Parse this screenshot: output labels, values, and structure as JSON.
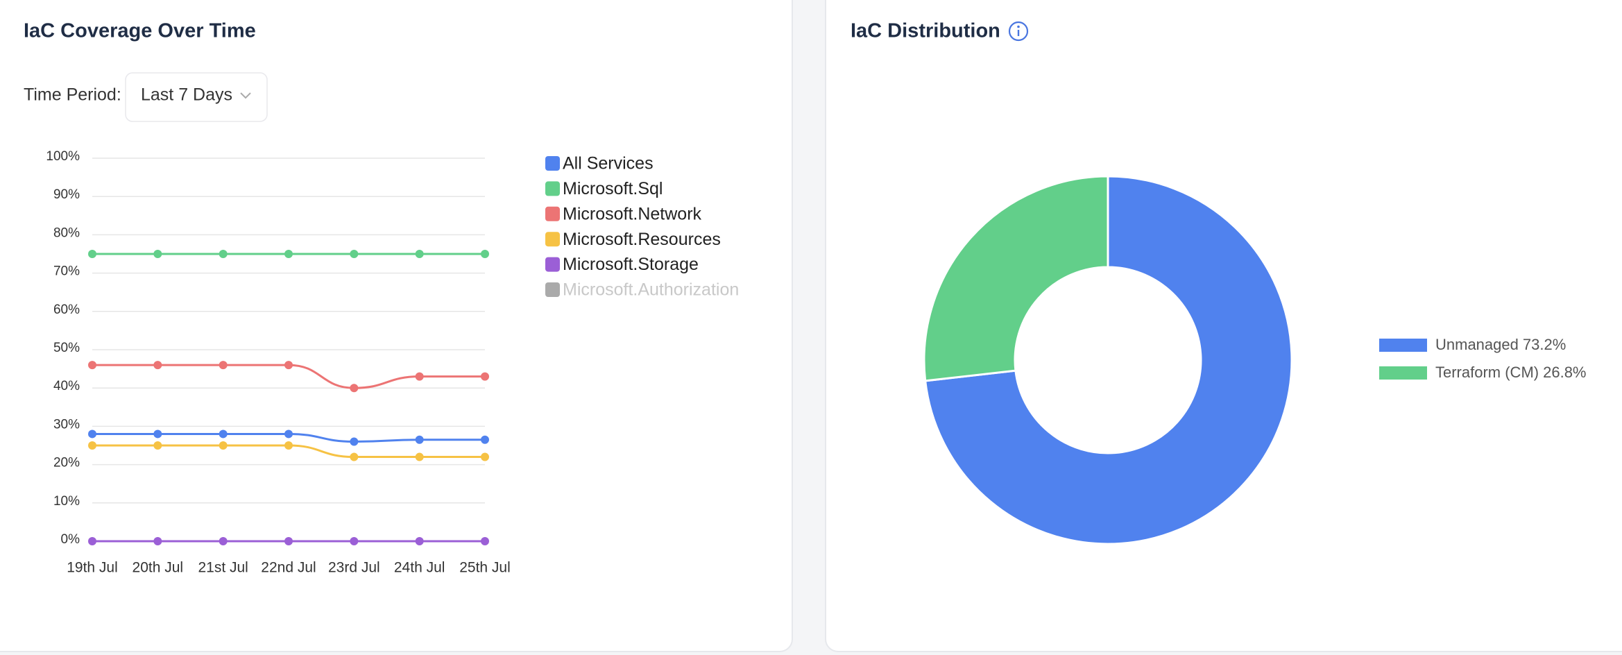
{
  "left_card": {
    "title": "IaC Coverage Over Time",
    "filter_label": "Time Period:",
    "filter_value": "Last 7 Days"
  },
  "right_card": {
    "title": "IaC Distribution"
  },
  "chart_data": [
    {
      "type": "line",
      "categories": [
        "19th Jul",
        "20th Jul",
        "21st Jul",
        "22nd Jul",
        "23rd Jul",
        "24th Jul",
        "25th Jul"
      ],
      "ylim": [
        0,
        100
      ],
      "yticks": [
        {
          "value": 0,
          "label": "0%"
        },
        {
          "value": 10,
          "label": "10%"
        },
        {
          "value": 20,
          "label": "20%"
        },
        {
          "value": 30,
          "label": "30%"
        },
        {
          "value": 40,
          "label": "40%"
        },
        {
          "value": 50,
          "label": "50%"
        },
        {
          "value": 60,
          "label": "60%"
        },
        {
          "value": 70,
          "label": "70%"
        },
        {
          "value": 80,
          "label": "80%"
        },
        {
          "value": 90,
          "label": "90%"
        },
        {
          "value": 100,
          "label": "100%"
        }
      ],
      "grid": true,
      "legend": "right",
      "series": [
        {
          "name": "All Services",
          "color": "#5082ee",
          "values": [
            28,
            28,
            28,
            28,
            26,
            26.5,
            26.5
          ]
        },
        {
          "name": "Microsoft.Sql",
          "color": "#62cf8a",
          "values": [
            75,
            75,
            75,
            75,
            75,
            75,
            75
          ]
        },
        {
          "name": "Microsoft.Network",
          "color": "#ec7474",
          "values": [
            46,
            46,
            46,
            46,
            40,
            43,
            43
          ]
        },
        {
          "name": "Microsoft.Resources",
          "color": "#f6c244",
          "values": [
            25,
            25,
            25,
            25,
            22,
            22,
            22
          ]
        },
        {
          "name": "Microsoft.Storage",
          "color": "#9b5fd6",
          "values": [
            0,
            0,
            0,
            0,
            0,
            0,
            0
          ]
        },
        {
          "name": "Microsoft.Authorization",
          "color": "#aaaaaa",
          "hidden": true,
          "values": [
            null,
            null,
            null,
            null,
            null,
            null,
            null
          ]
        }
      ]
    },
    {
      "type": "pie",
      "categories": [
        "Unmanaged",
        "Terraform (CM)"
      ],
      "values": [
        73.2,
        26.8
      ],
      "value_labels": [
        "73.2%",
        "26.8%"
      ],
      "colors": [
        "#5082ee",
        "#62cf8a"
      ],
      "donut": true,
      "legend": "right"
    }
  ]
}
